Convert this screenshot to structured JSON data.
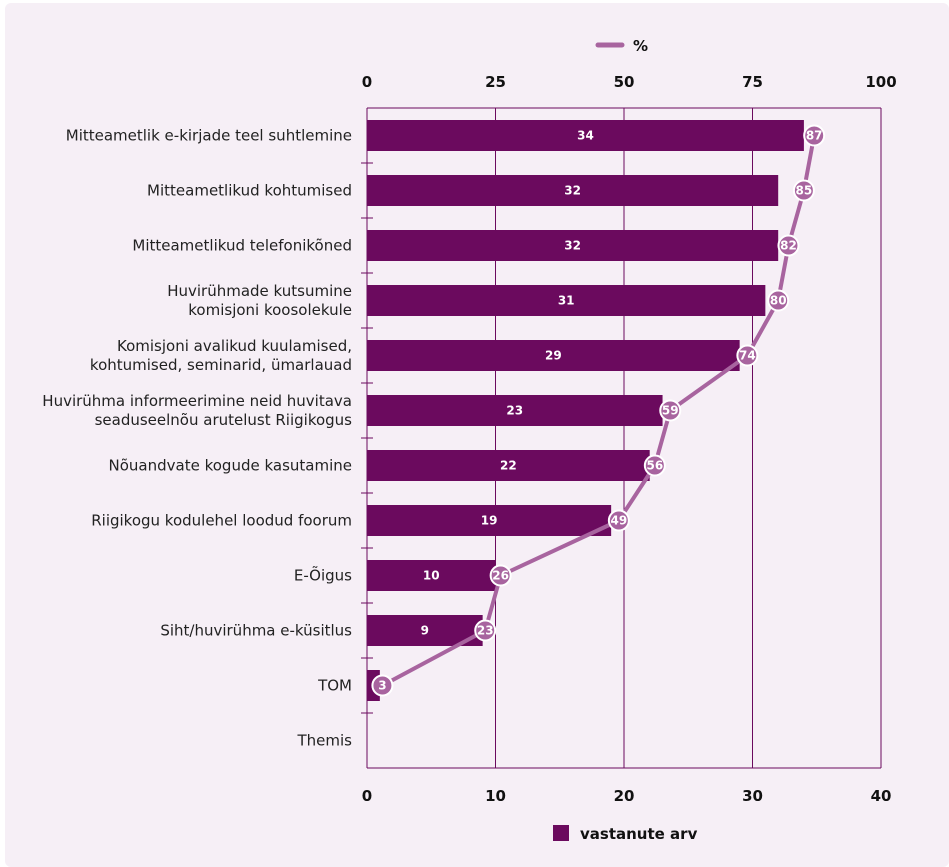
{
  "chart_data": {
    "type": "bar",
    "orientation": "horizontal",
    "categories": [
      [
        "Mitteametlik e-kirjade teel suhtlemine"
      ],
      [
        "Mitteametlikud kohtumised"
      ],
      [
        "Mitteametlikud telefonikõned"
      ],
      [
        "Huvirühmade kutsumine",
        "komisjoni koosolekule"
      ],
      [
        "Komisjoni avalikud kuulamised,",
        "kohtumised, seminarid, ümarlauad"
      ],
      [
        "Huvirühma informeerimine neid huvitava",
        "seaduseelnõu arutelust Riigikogus"
      ],
      [
        "Nõuandvate kogude kasutamine"
      ],
      [
        "Riigikogu kodulehel loodud foorum"
      ],
      [
        "E-Õigus"
      ],
      [
        "Siht/huvirühma e-küsitlus"
      ],
      [
        "TOM"
      ],
      [
        "Themis"
      ]
    ],
    "series": [
      {
        "name": "vastanute arv",
        "type": "bar",
        "axis": "bottom",
        "color": "#6b0a5e",
        "values": [
          34,
          32,
          32,
          31,
          29,
          23,
          22,
          19,
          10,
          9,
          1,
          0
        ],
        "labels": [
          "34",
          "32",
          "32",
          "31",
          "29",
          "23",
          "22",
          "19",
          "10",
          "9",
          "",
          ""
        ]
      },
      {
        "name": "%",
        "type": "line",
        "axis": "top",
        "color": "#a8649f",
        "values": [
          87,
          85,
          82,
          80,
          74,
          59,
          56,
          49,
          26,
          23,
          3,
          null
        ],
        "labels": [
          "87",
          "85",
          "82",
          "80",
          "74",
          "59",
          "56",
          "49",
          "26",
          "23",
          "3",
          ""
        ]
      }
    ],
    "x_bottom": {
      "range": [
        0,
        40
      ],
      "ticks": [
        "0",
        "10",
        "20",
        "30",
        "40"
      ]
    },
    "x_top": {
      "range": [
        0,
        100
      ],
      "ticks": [
        "0",
        "25",
        "50",
        "75",
        "100"
      ]
    },
    "grid": true,
    "legend_top": "%",
    "legend_bottom": "vastanute arv"
  }
}
